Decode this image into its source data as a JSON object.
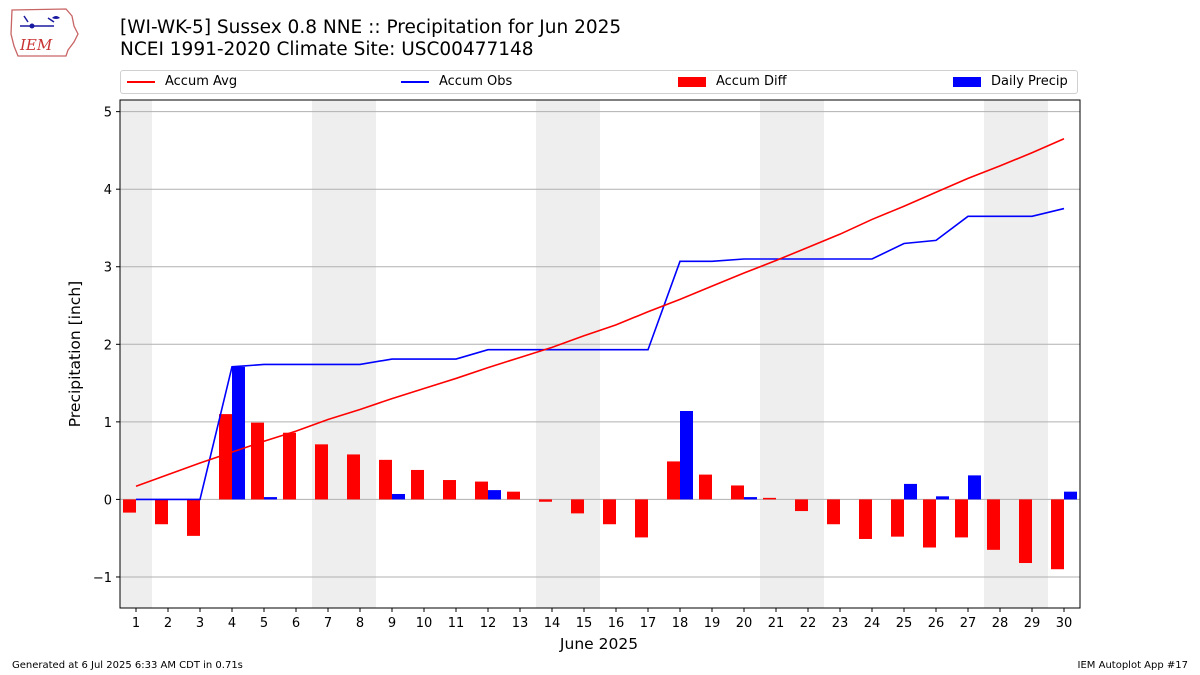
{
  "logo": {
    "text": "IEM"
  },
  "title": {
    "line1": "[WI-WK-5] Sussex 0.8 NNE :: Precipitation for Jun 2025",
    "line2": "NCEI 1991-2020 Climate Site: USC00477148"
  },
  "legend": [
    {
      "label": "Accum Avg",
      "kind": "line",
      "color": "#ff0000"
    },
    {
      "label": "Accum Obs",
      "kind": "line",
      "color": "#0000ff"
    },
    {
      "label": "Accum Diff",
      "kind": "bar",
      "color": "#ff0000"
    },
    {
      "label": "Daily Precip",
      "kind": "bar",
      "color": "#0000ff"
    }
  ],
  "footer": {
    "left": "Generated at 6 Jul 2025 6:33 AM CDT in 0.71s",
    "right": "IEM Autoplot App #17"
  },
  "chart_data": {
    "type": "bar",
    "xlabel": "June 2025",
    "ylabel": "Precipitation [inch]",
    "ylim": [
      -1.4,
      5.15
    ],
    "yticks": [
      -1,
      0,
      1,
      2,
      3,
      4,
      5
    ],
    "ytick_labels": [
      "−1",
      "0",
      "1",
      "2",
      "3",
      "4",
      "5"
    ],
    "categories": [
      1,
      2,
      3,
      4,
      5,
      6,
      7,
      8,
      9,
      10,
      11,
      12,
      13,
      14,
      15,
      16,
      17,
      18,
      19,
      20,
      21,
      22,
      23,
      24,
      25,
      26,
      27,
      28,
      29,
      30
    ],
    "grid": "horizontal",
    "weekend_shading_days": [
      1,
      7,
      8,
      14,
      15,
      21,
      22,
      28,
      29
    ],
    "colors": {
      "avg": "#ff0000",
      "obs": "#0000ff",
      "diff": "#ff0000",
      "daily": "#0000ff",
      "shade": "#eeeeee"
    },
    "series": [
      {
        "name": "Accum Avg",
        "type": "line",
        "values": [
          0.17,
          0.32,
          0.47,
          0.61,
          0.75,
          0.88,
          1.03,
          1.16,
          1.3,
          1.43,
          1.56,
          1.7,
          1.83,
          1.96,
          2.11,
          2.25,
          2.42,
          2.58,
          2.75,
          2.92,
          3.08,
          3.25,
          3.42,
          3.61,
          3.78,
          3.96,
          4.14,
          4.3,
          4.47,
          4.65
        ]
      },
      {
        "name": "Accum Obs",
        "type": "line",
        "values": [
          0.0,
          0.0,
          0.0,
          1.71,
          1.74,
          1.74,
          1.74,
          1.74,
          1.81,
          1.81,
          1.81,
          1.93,
          1.93,
          1.93,
          1.93,
          1.93,
          1.93,
          3.07,
          3.07,
          3.1,
          3.1,
          3.1,
          3.1,
          3.1,
          3.3,
          3.34,
          3.65,
          3.65,
          3.65,
          3.75
        ]
      },
      {
        "name": "Accum Diff",
        "type": "bar",
        "values": [
          -0.17,
          -0.32,
          -0.47,
          1.1,
          0.99,
          0.86,
          0.71,
          0.58,
          0.51,
          0.38,
          0.25,
          0.23,
          0.1,
          -0.03,
          -0.18,
          -0.32,
          -0.49,
          0.49,
          0.32,
          0.18,
          0.02,
          -0.15,
          -0.32,
          -0.51,
          -0.48,
          -0.62,
          -0.49,
          -0.65,
          -0.82,
          -0.9
        ]
      },
      {
        "name": "Daily Precip",
        "type": "bar",
        "values": [
          0.0,
          0.0,
          0.0,
          1.71,
          0.03,
          0.0,
          0.0,
          0.0,
          0.07,
          0.0,
          0.0,
          0.12,
          0.0,
          0.0,
          0.0,
          0.0,
          0.0,
          1.14,
          0.0,
          0.03,
          0.0,
          0.0,
          0.0,
          0.0,
          0.2,
          0.04,
          0.31,
          0.0,
          0.0,
          0.1
        ]
      }
    ]
  }
}
